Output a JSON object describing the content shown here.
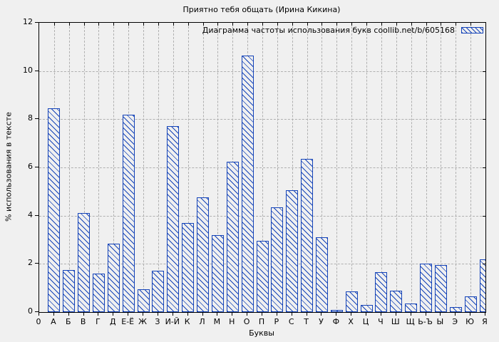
{
  "chart_data": {
    "type": "bar",
    "title": "Приятно тебя общать (Ирина Кикина)",
    "legend_label": "Диаграмма частоты использования букв coollib.net/b/605168",
    "legend_position": "top-right inside plot",
    "xlabel": "Буквы",
    "ylabel": "% использования в тексте",
    "x_origin_tick_label": "0",
    "categories": [
      "А",
      "Б",
      "В",
      "Г",
      "Д",
      "Е-Ё",
      "Ж",
      "З",
      "И-Й",
      "К",
      "Л",
      "М",
      "Н",
      "О",
      "П",
      "Р",
      "С",
      "Т",
      "У",
      "Ф",
      "Х",
      "Ц",
      "Ч",
      "Ш",
      "Щ",
      "Ь-Ъ",
      "Ы",
      "Э",
      "Ю",
      "Я"
    ],
    "values": [
      8.45,
      1.75,
      4.1,
      1.6,
      2.85,
      8.2,
      0.95,
      1.7,
      7.7,
      3.7,
      4.75,
      3.2,
      6.25,
      10.65,
      2.95,
      4.35,
      5.05,
      6.35,
      3.1,
      0.1,
      0.85,
      0.3,
      1.65,
      0.9,
      0.35,
      2.0,
      1.95,
      0.2,
      0.65,
      2.2
    ],
    "ylim": [
      0,
      12
    ],
    "yticks": [
      0,
      2,
      4,
      6,
      8,
      10,
      12
    ],
    "grid": "dashed, both axes",
    "bar_style": "blue outline with diagonal \\ hatch fill, last bar clipped at right axis",
    "colors": {
      "bar": "#1443b8",
      "grid": "#b0b0b0",
      "axis": "#000000",
      "text": "#000000",
      "background": "#f0f0f0"
    }
  }
}
